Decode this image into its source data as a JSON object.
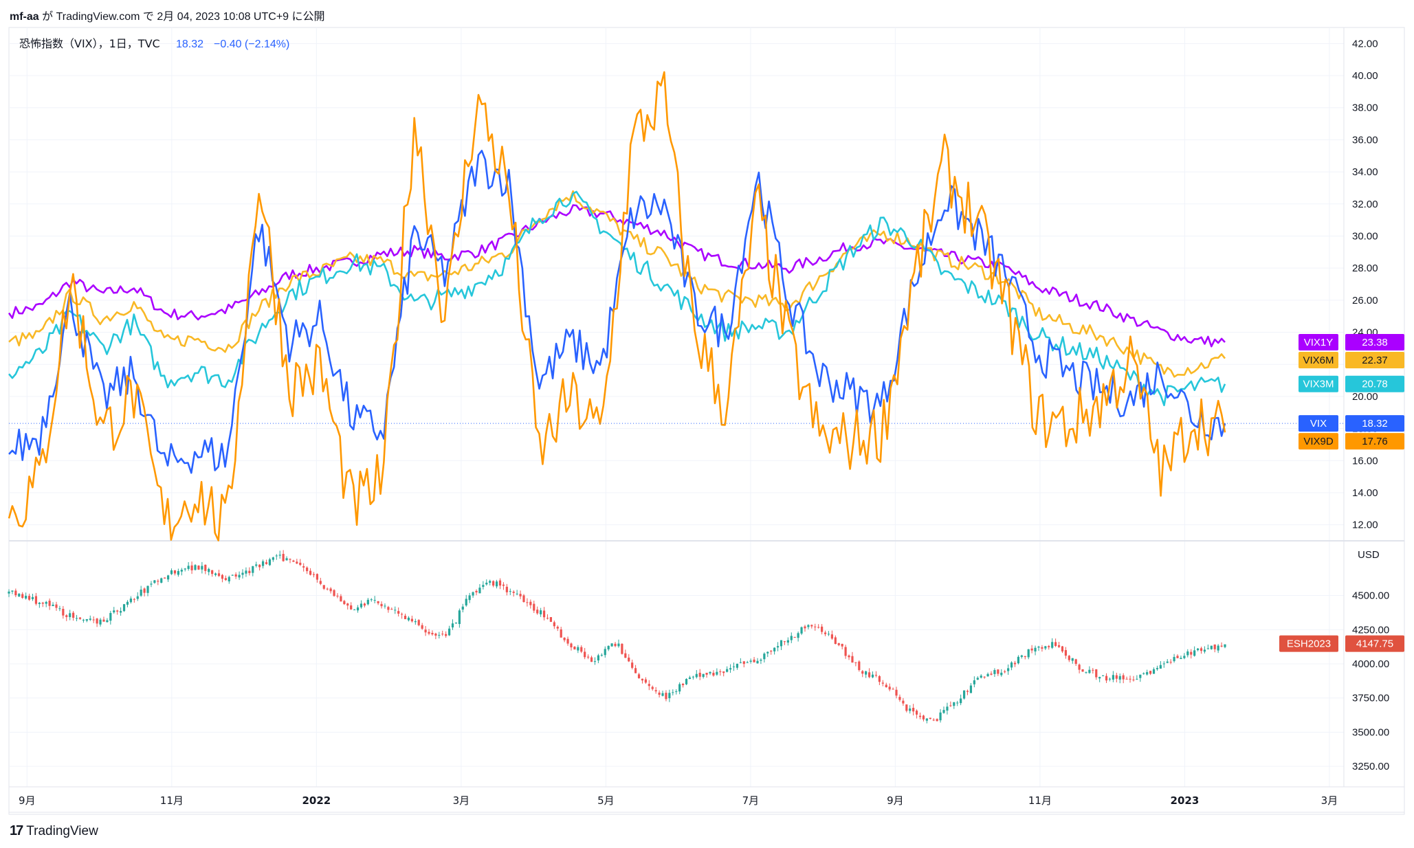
{
  "header": {
    "author": "mf-aa",
    "text1": "が",
    "site": "TradingView.com",
    "text2": "で",
    "date": "2月 04, 2023 10:08 UTC+9",
    "text3": "に公開"
  },
  "legend": {
    "symbol": "恐怖指数（VIX），1日，TVC",
    "value": "18.32",
    "change": "−0.40 (−2.14%)"
  },
  "footer": {
    "brand": "TradingView",
    "logo": "17"
  },
  "colors": {
    "VIX": "#2962ff",
    "VIX9D": "#ff9800",
    "VIX3M": "#26c6da",
    "VIX6M": "#f9b825",
    "VIX1Y": "#aa00ff",
    "ES_up": "#26a69a",
    "ES_down": "#ef5350",
    "grid": "#f0f3fa"
  },
  "chart_data": [
    {
      "type": "line",
      "title": "恐怖指数（VIX），1日，TVC",
      "ylim": [
        11,
        43
      ],
      "y_ticks": [
        "12.00",
        "14.00",
        "16.00",
        "18.00",
        "20.00",
        "22.00",
        "24.00",
        "26.00",
        "28.00",
        "30.00",
        "32.00",
        "34.00",
        "36.00",
        "38.00",
        "40.00",
        "42.00"
      ],
      "x_ticks": [
        "9月",
        "11月",
        "2022",
        "3月",
        "5月",
        "7月",
        "9月",
        "11月",
        "2023",
        "3月"
      ],
      "x_tick_dates": [
        "2021-09",
        "2021-11",
        "2022-01",
        "2022-03",
        "2022-05",
        "2022-07",
        "2022-09",
        "2022-11",
        "2023-01",
        "2023-03"
      ],
      "series": [
        {
          "name": "VIX1Y",
          "last": "23.38",
          "values": [
            25.2,
            25.6,
            27.2,
            26.4,
            26.8,
            25.2,
            25.0,
            25.4,
            26.4,
            27.6,
            28.0,
            28.4,
            28.9,
            29.1,
            28.7,
            29.0,
            29.8,
            30.8,
            31.6,
            31.4,
            30.8,
            30.2,
            29.0,
            28.4,
            28.2,
            28.0,
            28.6,
            29.4,
            29.6,
            29.2,
            28.8,
            28.4,
            28.0,
            26.8,
            26.2,
            25.6,
            24.8,
            24.0,
            23.5,
            23.38
          ],
          "name_note": "purple line"
        },
        {
          "name": "VIX6M",
          "last": "22.37",
          "values": [
            23.4,
            23.8,
            26.4,
            24.8,
            25.8,
            23.4,
            23.6,
            23.0,
            25.4,
            27.2,
            27.8,
            28.6,
            28.4,
            27.4,
            27.6,
            28.2,
            29.0,
            31.2,
            32.6,
            31.4,
            29.8,
            28.8,
            27.0,
            26.2,
            26.0,
            25.6,
            27.4,
            29.2,
            30.2,
            29.6,
            28.6,
            28.0,
            27.2,
            25.2,
            24.4,
            23.8,
            22.8,
            21.6,
            21.8,
            22.37
          ]
        },
        {
          "name": "VIX3M",
          "last": "20.78",
          "values": [
            21.4,
            22.6,
            25.2,
            23.0,
            24.6,
            21.0,
            21.6,
            21.0,
            24.0,
            26.4,
            27.4,
            28.4,
            27.8,
            25.8,
            26.2,
            27.0,
            28.4,
            31.2,
            32.6,
            30.6,
            28.6,
            27.0,
            25.2,
            24.0,
            24.4,
            24.0,
            26.6,
            29.0,
            30.8,
            29.8,
            27.6,
            26.6,
            25.6,
            23.8,
            23.0,
            22.4,
            21.2,
            20.0,
            20.6,
            20.78
          ]
        },
        {
          "name": "VIX",
          "last": "18.32",
          "values": [
            16.4,
            17.6,
            26.0,
            19.8,
            21.4,
            15.6,
            16.6,
            16.2,
            30.8,
            23.4,
            24.8,
            18.6,
            17.8,
            30.2,
            27.6,
            34.6,
            33.6,
            20.8,
            23.4,
            21.8,
            31.4,
            32.0,
            25.4,
            24.0,
            33.8,
            26.2,
            21.4,
            20.2,
            19.4,
            26.8,
            32.4,
            30.2,
            27.6,
            22.8,
            21.4,
            20.4,
            19.8,
            21.6,
            18.8,
            18.32
          ]
        },
        {
          "name": "VIX9D",
          "last": "17.76",
          "values": [
            12.4,
            14.8,
            27.4,
            17.6,
            20.2,
            12.0,
            14.2,
            11.6,
            33.8,
            20.6,
            21.8,
            13.0,
            14.8,
            37.4,
            24.8,
            38.6,
            33.2,
            16.4,
            20.0,
            17.6,
            36.0,
            38.8,
            24.2,
            19.2,
            32.0,
            23.4,
            17.4,
            17.2,
            17.8,
            27.0,
            34.4,
            31.0,
            25.8,
            18.6,
            18.2,
            19.6,
            22.2,
            15.0,
            18.8,
            17.76
          ]
        }
      ]
    },
    {
      "type": "candlestick",
      "title": "ESH2023",
      "currency": "USD",
      "ylim": [
        3100,
        4900
      ],
      "y_ticks": [
        "3250.00",
        "3500.00",
        "3750.00",
        "4000.00",
        "4250.00",
        "4500.00"
      ],
      "last": "4147.75",
      "close_path": [
        4520,
        4470,
        4400,
        4300,
        4330,
        4460,
        4600,
        4700,
        4710,
        4620,
        4690,
        4780,
        4740,
        4560,
        4400,
        4460,
        4380,
        4250,
        4200,
        4520,
        4600,
        4480,
        4360,
        4150,
        4030,
        4150,
        3880,
        3760,
        3900,
        3930,
        3990,
        4060,
        4180,
        4300,
        4160,
        3960,
        3860,
        3660,
        3580,
        3730,
        3920,
        3960,
        4100,
        4140,
        3980,
        3900,
        3890,
        3950,
        4050,
        4100,
        4147.75
      ]
    }
  ]
}
